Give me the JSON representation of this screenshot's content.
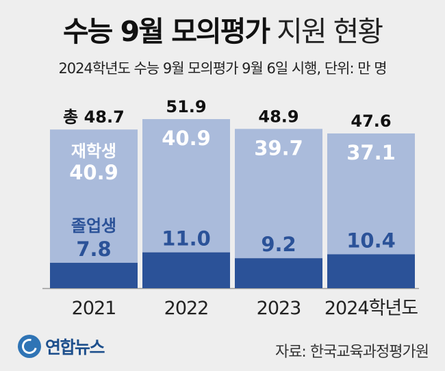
{
  "header": {
    "title_bold": "수능 9월 모의평가",
    "title_light": "지원 현황",
    "subtitle": "2024학년도 수능 9월 모의평가 9월 6일 시행, 단위: 만 명"
  },
  "chart_data": {
    "type": "bar",
    "stacked": true,
    "categories": [
      "2021",
      "2022",
      "2023",
      "2024학년도"
    ],
    "series": [
      {
        "name": "졸업생",
        "values": [
          7.8,
          11.0,
          9.2,
          10.4
        ],
        "color": "#2b5298"
      },
      {
        "name": "재학생",
        "values": [
          40.9,
          40.9,
          39.7,
          37.1
        ],
        "color": "#aabbdb"
      }
    ],
    "totals": [
      48.7,
      51.9,
      48.9,
      47.6
    ],
    "total_labels": [
      "총 48.7",
      "51.9",
      "48.9",
      "47.6"
    ],
    "ylim": [
      0,
      55
    ],
    "title": "수능 9월 모의평가 지원 현황",
    "xlabel": "",
    "ylabel": "",
    "grid": false,
    "legend": "inline labels inside first bar"
  },
  "colors": {
    "background": "#eeeeee",
    "graduate": "#2b5298",
    "student": "#aabbdb",
    "graduate_text": "#2b5298",
    "label_white": "#ffffff"
  },
  "footer": {
    "logo_text": "연합뉴스",
    "source": "자료: 한국교육과정평가원"
  }
}
